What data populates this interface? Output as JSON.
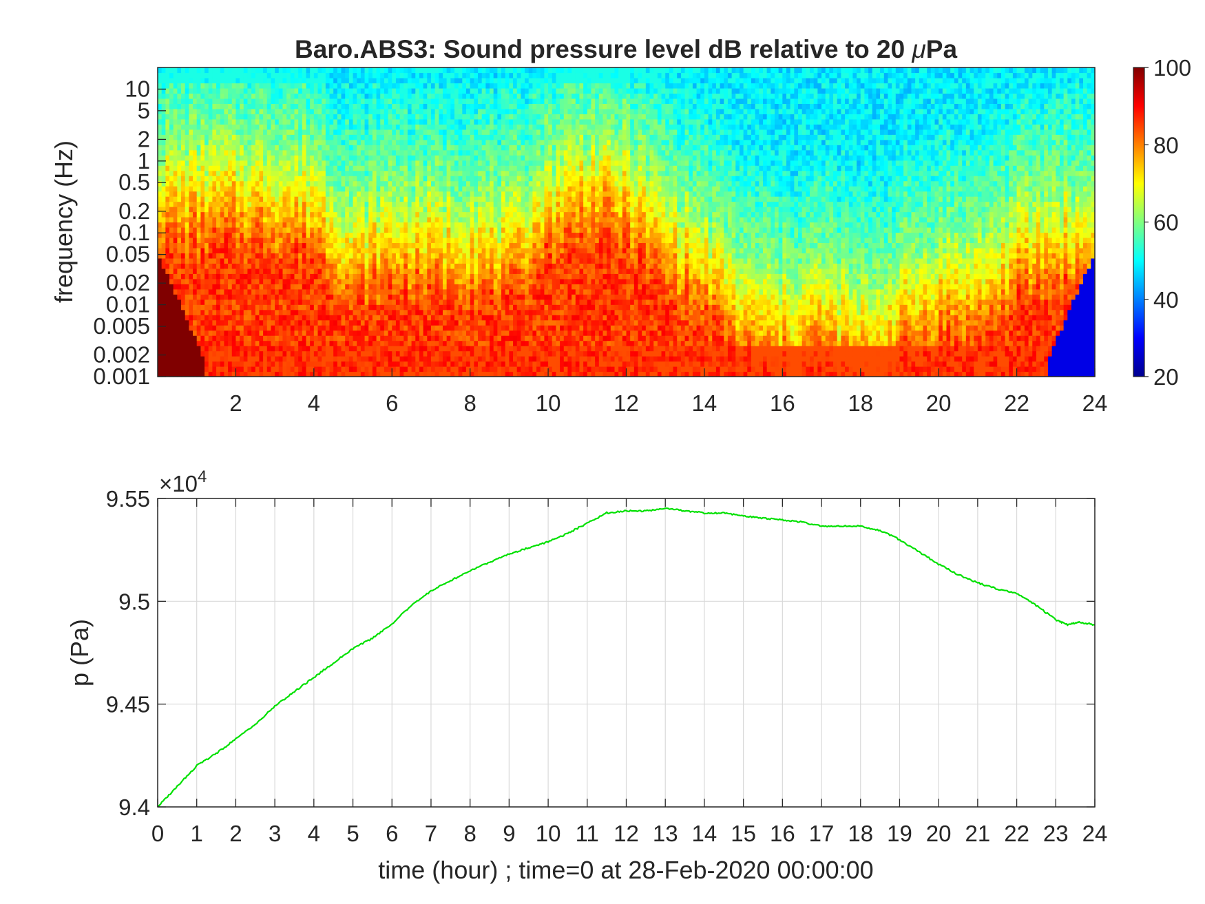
{
  "chart_data": [
    {
      "type": "heatmap",
      "title_parts": {
        "pre": "Baro.ABS3: Sound pressure level dB relative to 20 ",
        "mu": "μ",
        "post": "Pa"
      },
      "ylabel": "frequency (Hz)",
      "xlabel": "",
      "y_scale": "log",
      "xlim": [
        0,
        24
      ],
      "ylim": [
        0.001,
        20
      ],
      "x_ticks": [
        2,
        4,
        6,
        8,
        10,
        12,
        14,
        16,
        18,
        20,
        22,
        24
      ],
      "y_ticks": [
        0.001,
        0.002,
        0.005,
        0.01,
        0.02,
        0.05,
        0.1,
        0.2,
        0.5,
        1,
        2,
        5,
        10
      ],
      "y_tick_labels": [
        "0.001",
        "0.002",
        "0.005",
        "0.01",
        "0.02",
        "0.05",
        "0.1",
        "0.2",
        "0.5",
        "1",
        "2",
        "5",
        "10"
      ],
      "colormap": "jet",
      "colorbar": {
        "range": [
          20,
          100
        ],
        "ticks": [
          20,
          40,
          60,
          80,
          100
        ]
      },
      "level_profile": {
        "hours": [
          0,
          1,
          2,
          3,
          4,
          5,
          6,
          7,
          8,
          9,
          10,
          11,
          12,
          13,
          14,
          15,
          16,
          17,
          18,
          19,
          20,
          21,
          22,
          23,
          24
        ],
        "boundary_60dB_freq_hz": [
          2,
          2,
          2,
          2,
          1.5,
          0.3,
          0.5,
          0.4,
          0.5,
          0.3,
          1.5,
          3,
          2,
          0.5,
          0.2,
          0.05,
          0.03,
          0.05,
          0.02,
          0.05,
          0.1,
          0.1,
          0.3,
          0.5,
          0.5
        ]
      }
    },
    {
      "type": "line",
      "ylabel": "p (Pa)",
      "xlabel": "time (hour) ; time=0 at 28-Feb-2020 00:00:00",
      "xlim": [
        0,
        24
      ],
      "ylim": [
        94000,
        95500
      ],
      "x_ticks": [
        0,
        1,
        2,
        3,
        4,
        5,
        6,
        7,
        8,
        9,
        10,
        11,
        12,
        13,
        14,
        15,
        16,
        17,
        18,
        19,
        20,
        21,
        22,
        23,
        24
      ],
      "y_ticks": [
        94000,
        94500,
        95000,
        95500
      ],
      "y_tick_labels": [
        "9.4",
        "9.45",
        "9.5",
        "9.55"
      ],
      "y_exponent": "4",
      "grid": true,
      "series": [
        {
          "color": "#00e000",
          "x": [
            0,
            0.5,
            1,
            1.5,
            2,
            2.5,
            3,
            3.5,
            4,
            4.5,
            5,
            5.5,
            6,
            6.5,
            7,
            7.5,
            8,
            8.5,
            9,
            9.5,
            10,
            10.5,
            11,
            11.5,
            12,
            12.5,
            13,
            13.5,
            14,
            14.5,
            15,
            15.5,
            16,
            16.5,
            17,
            17.5,
            18,
            18.5,
            19,
            19.5,
            20,
            20.5,
            21,
            21.5,
            22,
            22.5,
            23,
            23.3,
            23.6,
            24
          ],
          "y": [
            94000,
            94100,
            94200,
            94260,
            94330,
            94400,
            94490,
            94560,
            94630,
            94700,
            94770,
            94820,
            94890,
            94980,
            95050,
            95100,
            95150,
            95190,
            95230,
            95260,
            95290,
            95330,
            95380,
            95430,
            95440,
            95440,
            95450,
            95440,
            95430,
            95430,
            95415,
            95405,
            95395,
            95385,
            95365,
            95365,
            95365,
            95345,
            95300,
            95240,
            95180,
            95130,
            95090,
            95060,
            95040,
            94980,
            94910,
            94885,
            94900,
            94885
          ]
        }
      ]
    }
  ]
}
